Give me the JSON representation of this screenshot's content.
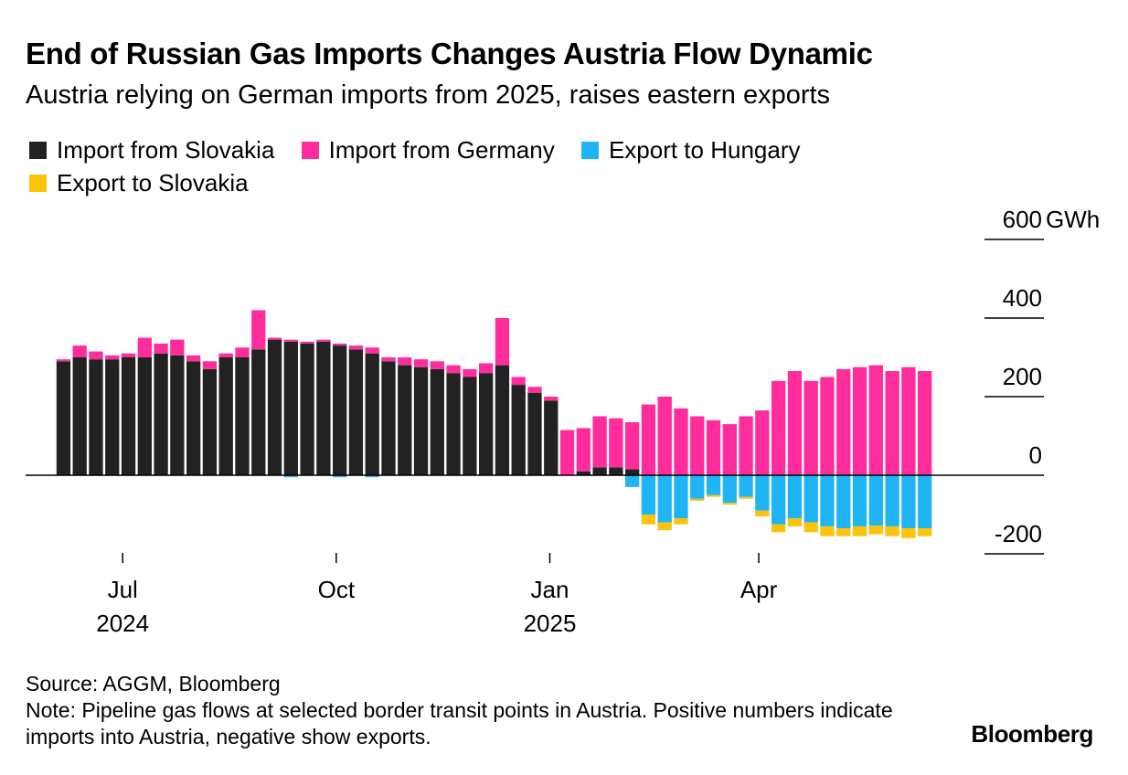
{
  "title": "End of Russian Gas Imports Changes Austria Flow Dynamic",
  "subtitle": "Austria relying on German imports from 2025, raises eastern exports",
  "source": "Source: AGGM, Bloomberg",
  "note": "Note: Pipeline gas flows at selected border transit points in Austria. Positive numbers indicate imports into Austria, negative show exports.",
  "brand": "Bloomberg",
  "colors": {
    "import_slovakia": "#222222",
    "import_germany": "#ff2d9b",
    "export_hungary": "#1fb5f4",
    "export_slovakia": "#fcc30b"
  },
  "chart_data": {
    "type": "bar",
    "stacked": true,
    "unit": "GWh",
    "ylim": [
      -220,
      600
    ],
    "y_ticks": [
      -200,
      0,
      200,
      400,
      600
    ],
    "y_tick_labels": [
      "-200",
      "0",
      "200",
      "400",
      "600"
    ],
    "x_ticks": [
      {
        "date": "2024-07-01",
        "label": "Jul",
        "sublabel": "2024"
      },
      {
        "date": "2024-10-01",
        "label": "Oct",
        "sublabel": ""
      },
      {
        "date": "2025-01-01",
        "label": "Jan",
        "sublabel": "2025"
      },
      {
        "date": "2025-04-01",
        "label": "Apr",
        "sublabel": ""
      }
    ],
    "legend_position": "top-left",
    "series": [
      {
        "key": "import_slovakia",
        "name": "Import from Slovakia",
        "sign": 1
      },
      {
        "key": "import_germany",
        "name": "Import from Germany",
        "sign": 1
      },
      {
        "key": "export_hungary",
        "name": "Export to Hungary",
        "sign": -1
      },
      {
        "key": "export_slovakia",
        "name": "Export to Slovakia",
        "sign": -1
      }
    ],
    "points": [
      {
        "x": "2024-06-02",
        "import_slovakia": 290,
        "import_germany": 5,
        "export_hungary": 0,
        "export_slovakia": 0
      },
      {
        "x": "2024-06-09",
        "import_slovakia": 300,
        "import_germany": 30,
        "export_hungary": 0,
        "export_slovakia": 0
      },
      {
        "x": "2024-06-16",
        "import_slovakia": 295,
        "import_germany": 20,
        "export_hungary": 0,
        "export_slovakia": 0
      },
      {
        "x": "2024-06-23",
        "import_slovakia": 295,
        "import_germany": 10,
        "export_hungary": 0,
        "export_slovakia": 0
      },
      {
        "x": "2024-06-30",
        "import_slovakia": 300,
        "import_germany": 10,
        "export_hungary": 0,
        "export_slovakia": 0
      },
      {
        "x": "2024-07-07",
        "import_slovakia": 300,
        "import_germany": 50,
        "export_hungary": 0,
        "export_slovakia": 0
      },
      {
        "x": "2024-07-14",
        "import_slovakia": 310,
        "import_germany": 25,
        "export_hungary": 0,
        "export_slovakia": 0
      },
      {
        "x": "2024-07-21",
        "import_slovakia": 305,
        "import_germany": 40,
        "export_hungary": 0,
        "export_slovakia": 0
      },
      {
        "x": "2024-07-28",
        "import_slovakia": 290,
        "import_germany": 15,
        "export_hungary": 0,
        "export_slovakia": 0
      },
      {
        "x": "2024-08-04",
        "import_slovakia": 270,
        "import_germany": 20,
        "export_hungary": 0,
        "export_slovakia": 0
      },
      {
        "x": "2024-08-11",
        "import_slovakia": 300,
        "import_germany": 10,
        "export_hungary": 0,
        "export_slovakia": 0
      },
      {
        "x": "2024-08-18",
        "import_slovakia": 300,
        "import_germany": 25,
        "export_hungary": 0,
        "export_slovakia": 0
      },
      {
        "x": "2024-08-25",
        "import_slovakia": 320,
        "import_germany": 100,
        "export_hungary": 0,
        "export_slovakia": 0
      },
      {
        "x": "2024-09-01",
        "import_slovakia": 345,
        "import_germany": 5,
        "export_hungary": 0,
        "export_slovakia": 0
      },
      {
        "x": "2024-09-08",
        "import_slovakia": 340,
        "import_germany": 5,
        "export_hungary": 5,
        "export_slovakia": 0
      },
      {
        "x": "2024-09-15",
        "import_slovakia": 335,
        "import_germany": 5,
        "export_hungary": 0,
        "export_slovakia": 0
      },
      {
        "x": "2024-09-22",
        "import_slovakia": 340,
        "import_germany": 5,
        "export_hungary": 0,
        "export_slovakia": 0
      },
      {
        "x": "2024-09-29",
        "import_slovakia": 330,
        "import_germany": 5,
        "export_hungary": 5,
        "export_slovakia": 0
      },
      {
        "x": "2024-10-06",
        "import_slovakia": 320,
        "import_germany": 10,
        "export_hungary": 0,
        "export_slovakia": 0
      },
      {
        "x": "2024-10-13",
        "import_slovakia": 310,
        "import_germany": 15,
        "export_hungary": 5,
        "export_slovakia": 0
      },
      {
        "x": "2024-10-20",
        "import_slovakia": 290,
        "import_germany": 10,
        "export_hungary": 0,
        "export_slovakia": 0
      },
      {
        "x": "2024-10-27",
        "import_slovakia": 280,
        "import_germany": 20,
        "export_hungary": 0,
        "export_slovakia": 0
      },
      {
        "x": "2024-11-03",
        "import_slovakia": 275,
        "import_germany": 20,
        "export_hungary": 0,
        "export_slovakia": 0
      },
      {
        "x": "2024-11-10",
        "import_slovakia": 270,
        "import_germany": 20,
        "export_hungary": 0,
        "export_slovakia": 0
      },
      {
        "x": "2024-11-17",
        "import_slovakia": 260,
        "import_germany": 20,
        "export_hungary": 0,
        "export_slovakia": 0
      },
      {
        "x": "2024-11-24",
        "import_slovakia": 250,
        "import_germany": 20,
        "export_hungary": 0,
        "export_slovakia": 0
      },
      {
        "x": "2024-12-01",
        "import_slovakia": 260,
        "import_germany": 25,
        "export_hungary": 0,
        "export_slovakia": 0
      },
      {
        "x": "2024-12-08",
        "import_slovakia": 280,
        "import_germany": 120,
        "export_hungary": 0,
        "export_slovakia": 0
      },
      {
        "x": "2024-12-15",
        "import_slovakia": 230,
        "import_germany": 20,
        "export_hungary": 0,
        "export_slovakia": 0
      },
      {
        "x": "2024-12-22",
        "import_slovakia": 210,
        "import_germany": 15,
        "export_hungary": 0,
        "export_slovakia": 0
      },
      {
        "x": "2024-12-29",
        "import_slovakia": 190,
        "import_germany": 10,
        "export_hungary": 0,
        "export_slovakia": 0
      },
      {
        "x": "2025-01-05",
        "import_slovakia": 0,
        "import_germany": 115,
        "export_hungary": 0,
        "export_slovakia": 0
      },
      {
        "x": "2025-01-12",
        "import_slovakia": 10,
        "import_germany": 110,
        "export_hungary": 0,
        "export_slovakia": 0
      },
      {
        "x": "2025-01-19",
        "import_slovakia": 20,
        "import_germany": 130,
        "export_hungary": 0,
        "export_slovakia": 0
      },
      {
        "x": "2025-01-26",
        "import_slovakia": 20,
        "import_germany": 125,
        "export_hungary": 0,
        "export_slovakia": 0
      },
      {
        "x": "2025-02-02",
        "import_slovakia": 15,
        "import_germany": 120,
        "export_hungary": 30,
        "export_slovakia": 0
      },
      {
        "x": "2025-02-09",
        "import_slovakia": 0,
        "import_germany": 180,
        "export_hungary": 100,
        "export_slovakia": 25
      },
      {
        "x": "2025-02-16",
        "import_slovakia": 0,
        "import_germany": 200,
        "export_hungary": 120,
        "export_slovakia": 20
      },
      {
        "x": "2025-02-23",
        "import_slovakia": 0,
        "import_germany": 170,
        "export_hungary": 110,
        "export_slovakia": 15
      },
      {
        "x": "2025-03-02",
        "import_slovakia": 0,
        "import_germany": 150,
        "export_hungary": 60,
        "export_slovakia": 5
      },
      {
        "x": "2025-03-09",
        "import_slovakia": 0,
        "import_germany": 140,
        "export_hungary": 50,
        "export_slovakia": 5
      },
      {
        "x": "2025-03-16",
        "import_slovakia": 0,
        "import_germany": 130,
        "export_hungary": 70,
        "export_slovakia": 5
      },
      {
        "x": "2025-03-23",
        "import_slovakia": 0,
        "import_germany": 150,
        "export_hungary": 55,
        "export_slovakia": 5
      },
      {
        "x": "2025-03-30",
        "import_slovakia": 0,
        "import_germany": 165,
        "export_hungary": 90,
        "export_slovakia": 15
      },
      {
        "x": "2025-04-06",
        "import_slovakia": 0,
        "import_germany": 240,
        "export_hungary": 125,
        "export_slovakia": 20
      },
      {
        "x": "2025-04-13",
        "import_slovakia": 0,
        "import_germany": 265,
        "export_hungary": 110,
        "export_slovakia": 20
      },
      {
        "x": "2025-04-20",
        "import_slovakia": 0,
        "import_germany": 240,
        "export_hungary": 120,
        "export_slovakia": 25
      },
      {
        "x": "2025-04-27",
        "import_slovakia": 0,
        "import_germany": 250,
        "export_hungary": 130,
        "export_slovakia": 25
      },
      {
        "x": "2025-05-04",
        "import_slovakia": 0,
        "import_germany": 270,
        "export_hungary": 135,
        "export_slovakia": 20
      },
      {
        "x": "2025-05-11",
        "import_slovakia": 0,
        "import_germany": 275,
        "export_hungary": 130,
        "export_slovakia": 25
      },
      {
        "x": "2025-05-18",
        "import_slovakia": 0,
        "import_germany": 280,
        "export_hungary": 128,
        "export_slovakia": 22
      },
      {
        "x": "2025-05-25",
        "import_slovakia": 0,
        "import_germany": 265,
        "export_hungary": 130,
        "export_slovakia": 25
      },
      {
        "x": "2025-06-01",
        "import_slovakia": 0,
        "import_germany": 275,
        "export_hungary": 135,
        "export_slovakia": 25
      },
      {
        "x": "2025-06-08",
        "import_slovakia": 0,
        "import_germany": 265,
        "export_hungary": 135,
        "export_slovakia": 20
      }
    ]
  }
}
